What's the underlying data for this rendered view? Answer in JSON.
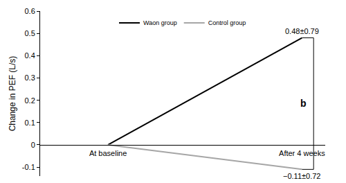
{
  "chart_data": {
    "type": "line",
    "y_label": "Change in PEF (L/s)",
    "categories": [
      "At baseline",
      "After 4 weeks"
    ],
    "series": [
      {
        "name": "Waon group",
        "color": "#000000",
        "values": [
          0,
          0.48
        ],
        "value_labels": [
          null,
          "0.48±0.79"
        ]
      },
      {
        "name": "Control group",
        "color": "#a6a6a6",
        "values": [
          0,
          -0.11
        ],
        "value_labels": [
          null,
          "−0.11±0.72"
        ]
      }
    ],
    "data_labels": true,
    "ylim": [
      -0.14,
      0.6
    ],
    "yticks": [
      -0.1,
      0,
      0.1,
      0.2,
      0.3,
      0.4,
      0.5,
      0.6
    ],
    "grid": false,
    "legend": "top",
    "annotations": [
      {
        "text": "b"
      }
    ]
  }
}
